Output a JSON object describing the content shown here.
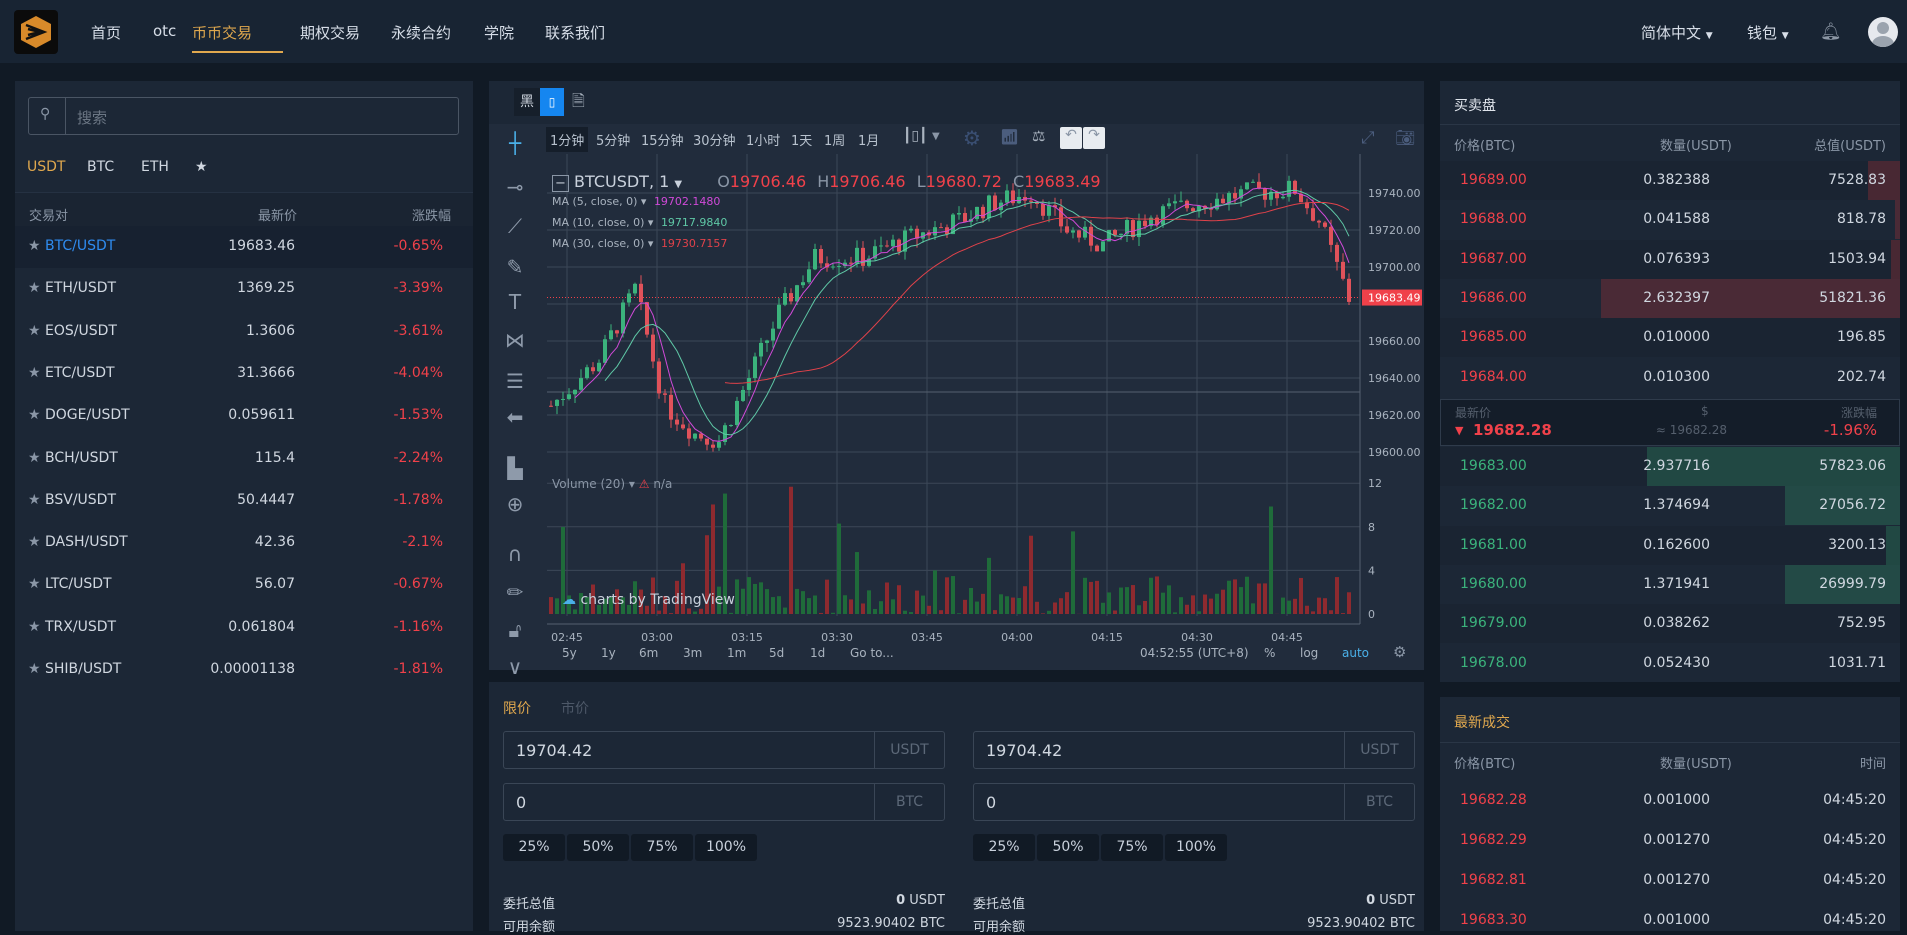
{
  "header": {
    "nav": [
      "首页",
      "otc",
      "币币交易",
      "期权交易",
      "永续合约",
      "学院",
      "联系我们"
    ],
    "active_index": 2,
    "language": "简体中文",
    "wallet": "钱包",
    "accent": "#e0a84e"
  },
  "markets": {
    "search_placeholder": "搜索",
    "tabs": [
      "USDT",
      "BTC",
      "ETH",
      "★"
    ],
    "active_tab": 0,
    "columns": [
      "交易对",
      "最新价",
      "涨跌幅"
    ],
    "rows": [
      {
        "pair": "BTC/USDT",
        "price": "19683.46",
        "change": "-0.65%",
        "active": true
      },
      {
        "pair": "ETH/USDT",
        "price": "1369.25",
        "change": "-3.39%"
      },
      {
        "pair": "EOS/USDT",
        "price": "1.3606",
        "change": "-3.61%"
      },
      {
        "pair": "ETC/USDT",
        "price": "31.3666",
        "change": "-4.04%"
      },
      {
        "pair": "DOGE/USDT",
        "price": "0.059611",
        "change": "-1.53%"
      },
      {
        "pair": "BCH/USDT",
        "price": "115.4",
        "change": "-2.24%"
      },
      {
        "pair": "BSV/USDT",
        "price": "50.4447",
        "change": "-1.78%"
      },
      {
        "pair": "DASH/USDT",
        "price": "42.36",
        "change": "-2.1%"
      },
      {
        "pair": "LTC/USDT",
        "price": "56.07",
        "change": "-0.67%"
      },
      {
        "pair": "TRX/USDT",
        "price": "0.061804",
        "change": "-1.16%"
      },
      {
        "pair": "SHIB/USDT",
        "price": "0.00001138",
        "change": "-1.81%"
      }
    ]
  },
  "chart": {
    "theme_buttons": [
      "黑"
    ],
    "intervals": [
      "1分钟",
      "5分钟",
      "15分钟",
      "30分钟",
      "1小时",
      "1天",
      "1周",
      "1月"
    ],
    "active_interval": 0,
    "symbol": "BTCUSDT, 1",
    "ohlc": {
      "o_label": "O",
      "o": "19706.46",
      "h_label": "H",
      "h": "19706.46",
      "l_label": "L",
      "l": "19680.72",
      "c_label": "C",
      "c": "19683.49"
    },
    "studies": [
      {
        "label": "MA (5, close, 0)",
        "value": "19702.1480",
        "color": "#d04ad8"
      },
      {
        "label": "MA (10, close, 0)",
        "value": "19717.9840",
        "color": "#5fc8a6"
      },
      {
        "label": "MA (30, close, 0)",
        "value": "19730.7157",
        "color": "#e0424a"
      }
    ],
    "volume_label": "Volume (20)",
    "volume_value": "n/a",
    "price_ticks": [
      "19740.00",
      "19720.00",
      "19700.00",
      "19683.49",
      "19660.00",
      "19640.00",
      "19620.00",
      "19600.00"
    ],
    "volume_ticks": [
      "12",
      "8",
      "4",
      "0"
    ],
    "time_ticks": [
      "02:45",
      "03:00",
      "03:15",
      "03:30",
      "03:45",
      "04:00",
      "04:15",
      "04:30",
      "04:45"
    ],
    "ranges": [
      "5y",
      "1y",
      "6m",
      "3m",
      "1m",
      "5d",
      "1d",
      "Go to..."
    ],
    "clock": "04:52:55 (UTC+8)",
    "pct": "%",
    "log": "log",
    "auto": "auto",
    "watermark": "charts by TradingView"
  },
  "trade": {
    "tabs": [
      "限价",
      "市价"
    ],
    "buy": {
      "price": "19704.42",
      "price_unit": "USDT",
      "amount": "0",
      "amount_unit": "BTC"
    },
    "sell": {
      "price": "19704.42",
      "price_unit": "USDT",
      "amount": "0",
      "amount_unit": "BTC"
    },
    "percents": [
      "25%",
      "50%",
      "75%",
      "100%"
    ],
    "total_label": "委托总值",
    "total": "0",
    "total_unit": "USDT",
    "avail_label": "可用余额",
    "avail_buy": "9523.90402 BTC",
    "avail_sell": "9523.90402 BTC"
  },
  "orderbook": {
    "title": "买卖盘",
    "columns": [
      "价格(BTC)",
      "数量(USDT)",
      "总值(USDT)"
    ],
    "asks": [
      {
        "p": "19689.00",
        "q": "0.382388",
        "t": "7528.83",
        "depth": 0.07
      },
      {
        "p": "19688.00",
        "q": "0.041588",
        "t": "818.78",
        "depth": 0.01
      },
      {
        "p": "19687.00",
        "q": "0.076393",
        "t": "1503.94",
        "depth": 0.02
      },
      {
        "p": "19686.00",
        "q": "2.632397",
        "t": "51821.36",
        "depth": 0.65
      },
      {
        "p": "19685.00",
        "q": "0.010000",
        "t": "196.85",
        "depth": 0.0
      },
      {
        "p": "19684.00",
        "q": "0.010300",
        "t": "202.74",
        "depth": 0.0
      }
    ],
    "mid": {
      "last_label": "最新价",
      "usd_label": "$",
      "change_label": "涨跌幅",
      "last": "19682.28",
      "usd": "≈ 19682.28",
      "change": "-1.96%"
    },
    "bids": [
      {
        "p": "19683.00",
        "q": "2.937716",
        "t": "57823.06",
        "depth": 0.55
      },
      {
        "p": "19682.00",
        "q": "1.374694",
        "t": "27056.72",
        "depth": 0.25
      },
      {
        "p": "19681.00",
        "q": "0.162600",
        "t": "3200.13",
        "depth": 0.03
      },
      {
        "p": "19680.00",
        "q": "1.371941",
        "t": "26999.79",
        "depth": 0.25
      },
      {
        "p": "19679.00",
        "q": "0.038262",
        "t": "752.95",
        "depth": 0.0
      },
      {
        "p": "19678.00",
        "q": "0.052430",
        "t": "1031.71",
        "depth": 0.0
      }
    ]
  },
  "trades": {
    "title": "最新成交",
    "columns": [
      "价格(BTC)",
      "数量(USDT)",
      "时间"
    ],
    "rows": [
      {
        "p": "19682.28",
        "q": "0.001000",
        "t": "04:45:20"
      },
      {
        "p": "19682.29",
        "q": "0.001270",
        "t": "04:45:20"
      },
      {
        "p": "19682.81",
        "q": "0.001270",
        "t": "04:45:20"
      },
      {
        "p": "19683.30",
        "q": "0.001000",
        "t": "04:45:20"
      }
    ]
  },
  "colors": {
    "up": "#3bb37c",
    "down": "#f0414a",
    "bg": "#111a25",
    "panel": "#1c2736",
    "chart_bg": "#212c3c",
    "link": "#2f8cf0"
  }
}
